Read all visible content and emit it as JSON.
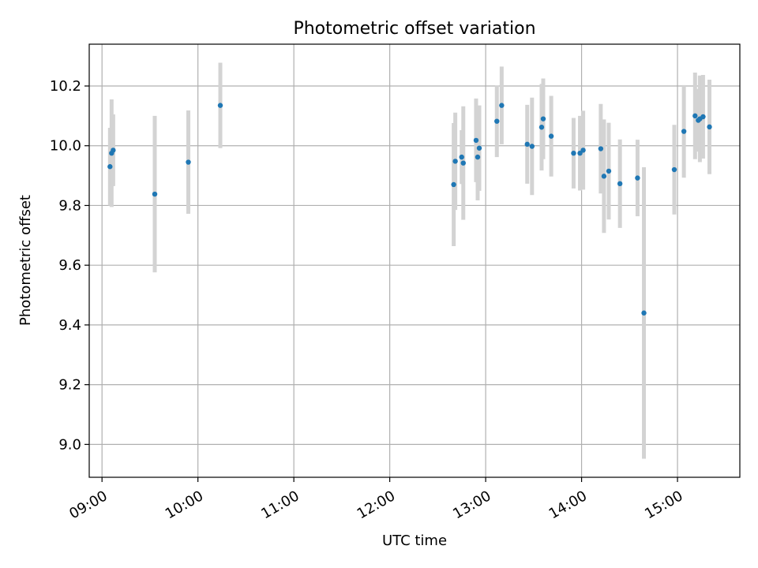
{
  "chart_data": {
    "type": "scatter",
    "title": "Photometric offset variation",
    "xlabel": "UTC time",
    "ylabel": "Photometric offset",
    "x_unit": "UTC time (HH:MM)",
    "xlim": [
      "08:52",
      "15:39"
    ],
    "ylim": [
      8.89,
      10.34
    ],
    "xticks": [
      "09:00",
      "10:00",
      "11:00",
      "12:00",
      "13:00",
      "14:00",
      "15:00"
    ],
    "yticks": [
      "9.0",
      "9.2",
      "9.4",
      "9.6",
      "9.8",
      "10.0",
      "10.2"
    ],
    "grid": true,
    "legend": "none",
    "colors": {
      "point": "#1f77b4",
      "errorbar": "#d3d3d3",
      "grid": "#b0b0b0"
    },
    "points": [
      {
        "x": "09:05",
        "y": 9.93,
        "err": 0.13
      },
      {
        "x": "09:06",
        "y": 9.975,
        "err": 0.18
      },
      {
        "x": "09:07",
        "y": 9.985,
        "err": 0.12
      },
      {
        "x": "09:33",
        "y": 9.838,
        "err": 0.262
      },
      {
        "x": "09:54",
        "y": 9.945,
        "err": 0.173
      },
      {
        "x": "10:14",
        "y": 10.135,
        "err": 0.143
      },
      {
        "x": "12:40",
        "y": 9.87,
        "err": 0.206
      },
      {
        "x": "12:41",
        "y": 9.948,
        "err": 0.163
      },
      {
        "x": "12:45",
        "y": 9.962,
        "err": 0.09
      },
      {
        "x": "12:46",
        "y": 9.942,
        "err": 0.19
      },
      {
        "x": "12:54",
        "y": 10.018,
        "err": 0.14
      },
      {
        "x": "12:55",
        "y": 9.962,
        "err": 0.145
      },
      {
        "x": "12:56",
        "y": 9.992,
        "err": 0.143
      },
      {
        "x": "13:07",
        "y": 10.082,
        "err": 0.12
      },
      {
        "x": "13:10",
        "y": 10.135,
        "err": 0.13
      },
      {
        "x": "13:26",
        "y": 10.005,
        "err": 0.132
      },
      {
        "x": "13:29",
        "y": 9.998,
        "err": 0.163
      },
      {
        "x": "13:35",
        "y": 10.062,
        "err": 0.145
      },
      {
        "x": "13:36",
        "y": 10.09,
        "err": 0.135
      },
      {
        "x": "13:41",
        "y": 10.032,
        "err": 0.135
      },
      {
        "x": "13:55",
        "y": 9.975,
        "err": 0.118
      },
      {
        "x": "13:59",
        "y": 9.975,
        "err": 0.125
      },
      {
        "x": "14:01",
        "y": 9.985,
        "err": 0.132
      },
      {
        "x": "14:12",
        "y": 9.99,
        "err": 0.15
      },
      {
        "x": "14:14",
        "y": 9.898,
        "err": 0.19
      },
      {
        "x": "14:17",
        "y": 9.915,
        "err": 0.162
      },
      {
        "x": "14:24",
        "y": 9.873,
        "err": 0.148
      },
      {
        "x": "14:35",
        "y": 9.892,
        "err": 0.128
      },
      {
        "x": "14:39",
        "y": 9.44,
        "err": 0.488
      },
      {
        "x": "14:58",
        "y": 9.92,
        "err": 0.15
      },
      {
        "x": "15:04",
        "y": 10.048,
        "err": 0.155
      },
      {
        "x": "15:11",
        "y": 10.1,
        "err": 0.145
      },
      {
        "x": "15:13",
        "y": 10.085,
        "err": 0.105
      },
      {
        "x": "15:14",
        "y": 10.09,
        "err": 0.145
      },
      {
        "x": "15:16",
        "y": 10.097,
        "err": 0.14
      },
      {
        "x": "15:20",
        "y": 10.063,
        "err": 0.158
      }
    ]
  }
}
